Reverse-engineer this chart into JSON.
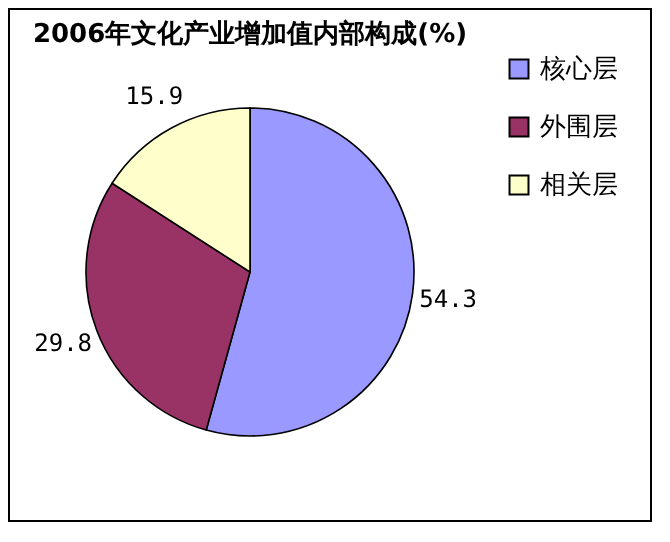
{
  "chart_data": {
    "type": "pie",
    "title": "2006年文化产业增加值内部构成(%)",
    "categories": [
      "核心层",
      "外围层",
      "相关层"
    ],
    "values": [
      54.3,
      29.8,
      15.9
    ],
    "colors": [
      "#9999ff",
      "#993366",
      "#ffffcc"
    ],
    "data_labels": true,
    "legend": "right"
  }
}
